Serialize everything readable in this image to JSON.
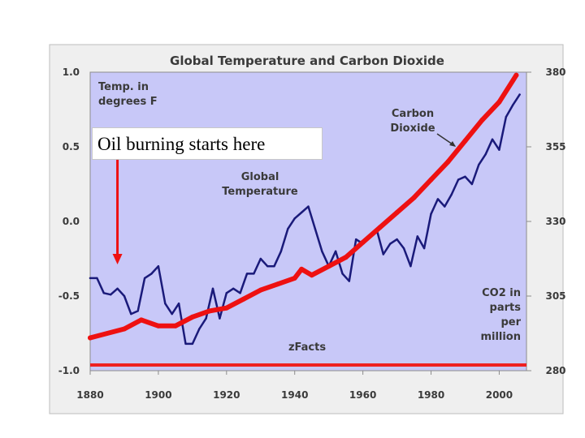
{
  "chart_data": {
    "type": "line",
    "title": "Global Temperature and Carbon Dioxide",
    "x_ticks": [
      "1880",
      "1900",
      "1920",
      "1940",
      "1960",
      "1980",
      "2000"
    ],
    "left_axis": {
      "label_lines": [
        "Temp. in",
        "degrees F"
      ],
      "ticks": [
        "1.0",
        "0.5",
        "0.0",
        "-0.5",
        "-1.0"
      ],
      "ylim": [
        -1.0,
        1.0
      ]
    },
    "right_axis": {
      "label_lines": [
        "CO2 in",
        "parts",
        "per",
        "million"
      ],
      "ticks": [
        "380",
        "355",
        "330",
        "305",
        "280"
      ],
      "ylim": [
        280,
        380
      ]
    },
    "xlim": [
      1880,
      2008
    ],
    "grid": false,
    "series": [
      {
        "name": "Global Temperature",
        "label_lines": [
          "Global",
          "Temperature"
        ],
        "axis": "left",
        "color": "#1a1a7a",
        "x": [
          1880,
          1882,
          1884,
          1886,
          1888,
          1890,
          1892,
          1894,
          1896,
          1898,
          1900,
          1902,
          1904,
          1906,
          1908,
          1910,
          1912,
          1914,
          1916,
          1918,
          1920,
          1922,
          1924,
          1926,
          1928,
          1930,
          1932,
          1934,
          1936,
          1938,
          1940,
          1942,
          1944,
          1946,
          1948,
          1950,
          1952,
          1954,
          1956,
          1958,
          1960,
          1962,
          1964,
          1966,
          1968,
          1970,
          1972,
          1974,
          1976,
          1978,
          1980,
          1982,
          1984,
          1986,
          1988,
          1990,
          1992,
          1994,
          1996,
          1998,
          2000,
          2002,
          2004,
          2006
        ],
        "y": [
          -0.38,
          -0.38,
          -0.48,
          -0.49,
          -0.45,
          -0.5,
          -0.62,
          -0.6,
          -0.38,
          -0.35,
          -0.3,
          -0.55,
          -0.62,
          -0.55,
          -0.82,
          -0.82,
          -0.72,
          -0.65,
          -0.45,
          -0.65,
          -0.48,
          -0.45,
          -0.48,
          -0.35,
          -0.35,
          -0.25,
          -0.3,
          -0.3,
          -0.2,
          -0.05,
          0.02,
          0.06,
          0.1,
          -0.05,
          -0.2,
          -0.3,
          -0.2,
          -0.35,
          -0.4,
          -0.12,
          -0.15,
          -0.1,
          -0.05,
          -0.22,
          -0.15,
          -0.12,
          -0.18,
          -0.3,
          -0.1,
          -0.18,
          0.05,
          0.15,
          0.1,
          0.18,
          0.28,
          0.3,
          0.25,
          0.38,
          0.45,
          0.55,
          0.48,
          0.7,
          0.78,
          0.85
        ]
      },
      {
        "name": "Carbon Dioxide",
        "label_lines": [
          "Carbon",
          "Dioxide"
        ],
        "axis": "right",
        "color": "#ee1111",
        "x": [
          1880,
          1890,
          1895,
          1900,
          1905,
          1910,
          1915,
          1920,
          1925,
          1930,
          1935,
          1940,
          1942,
          1945,
          1950,
          1955,
          1960,
          1965,
          1970,
          1975,
          1980,
          1985,
          1990,
          1995,
          2000,
          2005
        ],
        "y": [
          291,
          294,
          297,
          295,
          295,
          298,
          300,
          301,
          304,
          307,
          309,
          311,
          314,
          312,
          315,
          318,
          323,
          328,
          333,
          338,
          344,
          350,
          357,
          364,
          370,
          379
        ]
      }
    ],
    "annotations": {
      "callout": "Oil burning starts here",
      "arrow_year": 1888,
      "watermark": "zFacts"
    },
    "colors": {
      "plot_background": "#c8c8f8",
      "frame_background": "#efefef",
      "baseline": "#ee2020",
      "arrow": "#ee1111"
    }
  }
}
